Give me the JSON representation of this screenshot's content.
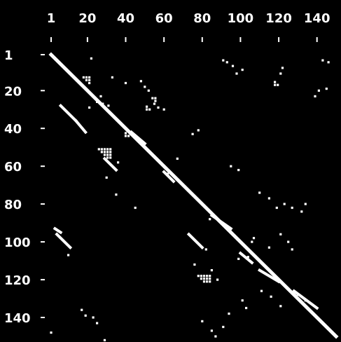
{
  "chart_data": {
    "type": "heatmap",
    "title": "",
    "xlabel": "",
    "ylabel": "",
    "x_ticks": [
      "1",
      "20",
      "40",
      "60",
      "80",
      "100",
      "120",
      "140"
    ],
    "y_ticks": [
      "1",
      "20",
      "40",
      "60",
      "80",
      "100",
      "120",
      "140"
    ],
    "xlim": [
      1,
      150
    ],
    "ylim": [
      1,
      150
    ],
    "x_tick_values": [
      1,
      20,
      40,
      60,
      80,
      100,
      120,
      140
    ],
    "y_tick_values": [
      1,
      20,
      40,
      60,
      80,
      100,
      120,
      140
    ],
    "y_axis_direction": "top-to-bottom",
    "grid": false,
    "legend": false,
    "colors": {
      "background": "#000000",
      "mark": "#ffffff"
    },
    "diagonal": {
      "from": 1,
      "to": 150
    },
    "segments": [
      {
        "x": [
          6,
          14
        ],
        "y": [
          28,
          36
        ]
      },
      {
        "x": [
          14,
          19
        ],
        "y": [
          36,
          42
        ]
      },
      {
        "x": [
          29,
          35
        ],
        "y": [
          56,
          62
        ]
      },
      {
        "x": [
          4,
          11
        ],
        "y": [
          96,
          103
        ]
      },
      {
        "x": [
          73,
          80
        ],
        "y": [
          96,
          103
        ]
      },
      {
        "x": [
          3,
          6
        ],
        "y": [
          93,
          95
        ]
      },
      {
        "x": [
          43,
          50
        ],
        "y": [
          42,
          48
        ]
      },
      {
        "x": [
          60,
          65
        ],
        "y": [
          63,
          68
        ]
      },
      {
        "x": [
          85,
          95
        ],
        "y": [
          86,
          93
        ]
      },
      {
        "x": [
          100,
          106
        ],
        "y": [
          106,
          111
        ]
      },
      {
        "x": [
          110,
          120
        ],
        "y": [
          115,
          121
        ]
      },
      {
        "x": [
          128,
          140
        ],
        "y": [
          126,
          135
        ]
      }
    ],
    "clusters": [
      {
        "x": [
          78,
          84
        ],
        "y": [
          118,
          122
        ]
      },
      {
        "x": [
          40,
          45
        ],
        "y": [
          41,
          44
        ]
      },
      {
        "x": [
          26,
          32
        ],
        "y": [
          51,
          56
        ]
      },
      {
        "x": [
          15,
          22
        ],
        "y": [
          13,
          16
        ]
      },
      {
        "x": [
          51,
          56
        ],
        "y": [
          24,
          30
        ]
      },
      {
        "x": [
          118,
          122
        ],
        "y": [
          11,
          18
        ]
      }
    ],
    "points": [
      [
        22,
        3
      ],
      [
        25,
        26
      ],
      [
        28,
        27
      ],
      [
        31,
        28
      ],
      [
        33,
        13
      ],
      [
        40,
        16
      ],
      [
        48,
        15
      ],
      [
        50,
        18
      ],
      [
        52,
        20
      ],
      [
        55,
        27
      ],
      [
        57,
        29
      ],
      [
        60,
        30
      ],
      [
        62,
        64
      ],
      [
        67,
        56
      ],
      [
        75,
        43
      ],
      [
        78,
        41
      ],
      [
        84,
        88
      ],
      [
        91,
        4
      ],
      [
        93,
        5
      ],
      [
        96,
        7
      ],
      [
        98,
        11
      ],
      [
        101,
        9
      ],
      [
        110,
        74
      ],
      [
        115,
        77
      ],
      [
        119,
        82
      ],
      [
        123,
        80
      ],
      [
        127,
        82
      ],
      [
        132,
        84
      ],
      [
        134,
        80
      ],
      [
        99,
        109
      ],
      [
        104,
        108
      ],
      [
        106,
        100
      ],
      [
        107,
        98
      ],
      [
        115,
        103
      ],
      [
        121,
        96
      ],
      [
        125,
        100
      ],
      [
        127,
        104
      ],
      [
        139,
        23
      ],
      [
        141,
        20
      ],
      [
        145,
        19
      ],
      [
        143,
        4
      ],
      [
        146,
        5
      ],
      [
        122,
        8
      ],
      [
        27,
        23
      ],
      [
        21,
        29
      ],
      [
        30,
        66
      ],
      [
        36,
        58
      ],
      [
        10,
        107
      ],
      [
        17,
        136
      ],
      [
        19,
        139
      ],
      [
        23,
        140
      ],
      [
        25,
        143
      ],
      [
        29,
        152
      ],
      [
        1,
        148
      ],
      [
        80,
        142
      ],
      [
        85,
        147
      ],
      [
        87,
        150
      ],
      [
        91,
        145
      ],
      [
        94,
        138
      ],
      [
        101,
        131
      ],
      [
        103,
        135
      ],
      [
        111,
        126
      ],
      [
        116,
        129
      ],
      [
        121,
        134
      ],
      [
        130,
        128
      ],
      [
        134,
        131
      ],
      [
        82,
        104
      ],
      [
        76,
        112
      ],
      [
        85,
        115
      ],
      [
        88,
        120
      ],
      [
        95,
        60
      ],
      [
        99,
        62
      ],
      [
        35,
        75
      ],
      [
        45,
        82
      ]
    ]
  }
}
